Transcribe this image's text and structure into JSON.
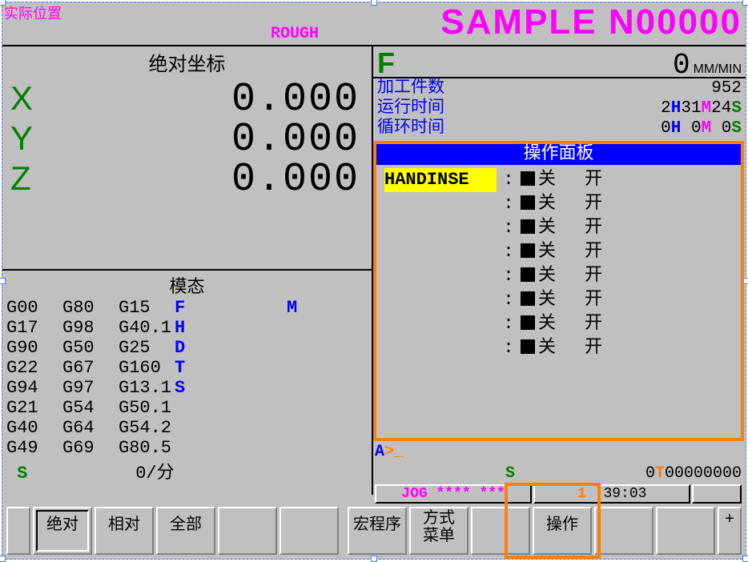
{
  "title": {
    "left": "实际位置",
    "center": "ROUGH",
    "right": "SAMPLE N00000"
  },
  "coords": {
    "heading": "绝对坐标",
    "rows": [
      {
        "axis": "X",
        "value": "0.000"
      },
      {
        "axis": "Y",
        "value": "0.000"
      },
      {
        "axis": "Z",
        "value": "0.000"
      }
    ]
  },
  "modal": {
    "heading": "模态",
    "rows": [
      [
        "G00",
        "G80",
        "G15",
        "F",
        "",
        "M"
      ],
      [
        "G17",
        "G98",
        "G40.1",
        "H",
        "",
        ""
      ],
      [
        "G90",
        "G50",
        "G25",
        "D",
        "",
        ""
      ],
      [
        "G22",
        "G67",
        "G160",
        "T",
        "",
        ""
      ],
      [
        "G94",
        "G97",
        "G13.1",
        "S",
        "",
        ""
      ],
      [
        "G21",
        "G54",
        "G50.1",
        "",
        "",
        ""
      ],
      [
        "G40",
        "G64",
        "G54.2",
        "",
        "",
        ""
      ],
      [
        "G49",
        "G69",
        "G80.5",
        "",
        "",
        ""
      ]
    ],
    "spindle": {
      "label": "S",
      "value": "0/分"
    }
  },
  "feed": {
    "label": "F",
    "value": "0",
    "unit": "MM/MIN"
  },
  "status": {
    "parts": {
      "label": "加工件数",
      "value": "952"
    },
    "runtime": {
      "label": "运行时间",
      "h": "2",
      "m": "31",
      "s": "24"
    },
    "cycle": {
      "label": "循环时间",
      "h": "0",
      "m": "0",
      "s": "0"
    }
  },
  "panel": {
    "title": "操作面板",
    "rows": [
      {
        "name": "HANDINSE",
        "highlight": true,
        "off": "关",
        "on": "开"
      },
      {
        "name": "",
        "off": "关",
        "on": "开"
      },
      {
        "name": "",
        "off": "关",
        "on": "开"
      },
      {
        "name": "",
        "off": "关",
        "on": "开"
      },
      {
        "name": "",
        "off": "关",
        "on": "开"
      },
      {
        "name": "",
        "off": "关",
        "on": "开"
      },
      {
        "name": "",
        "off": "关",
        "on": "开"
      },
      {
        "name": "",
        "off": "关",
        "on": "开"
      }
    ]
  },
  "prompt": {
    "a": "A",
    "gt": ">",
    "cursor": "_"
  },
  "bottom": {
    "s": "S",
    "t_label": "0",
    "t": "T",
    "t_val": "00000000"
  },
  "mode": {
    "jog": "JOG **** ***",
    "time": "1 :39:03"
  },
  "softkeys": {
    "left": [
      "绝对",
      "相对",
      "全部"
    ],
    "right": [
      "宏程序",
      "方式\n菜单",
      "操作"
    ],
    "plus": "+"
  },
  "colors": {
    "bg": "#c0c0c0",
    "border": "#000000",
    "green": "#008000",
    "magenta": "#ff00ff",
    "blue": "#0000ff",
    "orange": "#ff7f00",
    "yellow": "#ffff00"
  }
}
